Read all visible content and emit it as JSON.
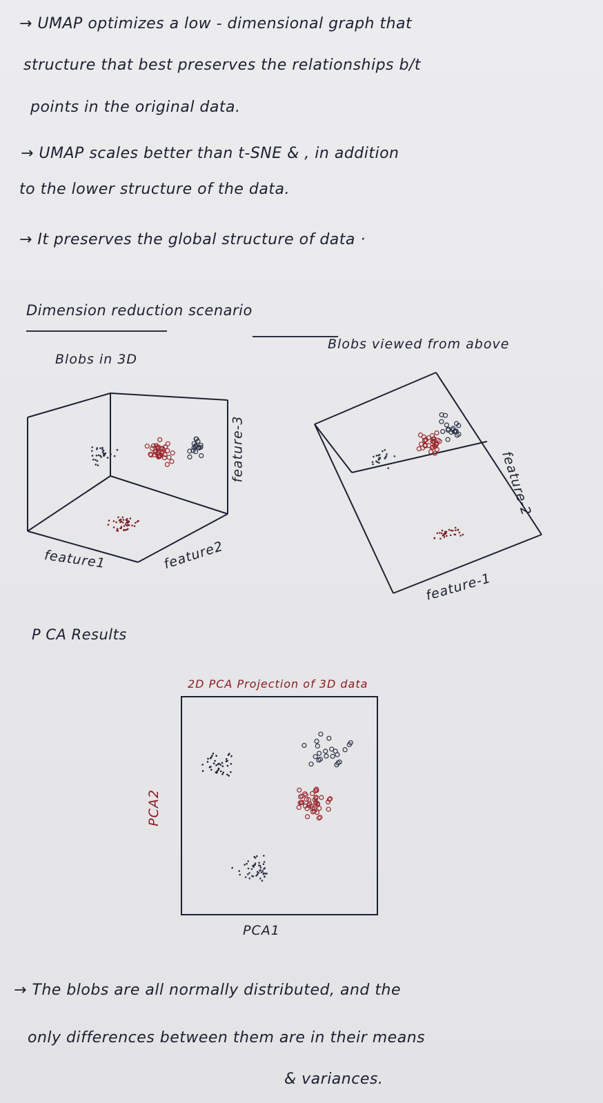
{
  "notes": {
    "line1": "→ UMAP optimizes a low - dimensional graph that",
    "line2": "structure that best preserves the relationships b/t",
    "line3": "points in the original data.",
    "line4": "→ UMAP scales better than t-SNE & , in addition",
    "line5": "to the lower structure of the data.",
    "line6": "→ It preserves the global structure of data ·"
  },
  "section1": {
    "title": "Dimension reduction scenario",
    "left_caption": "Blobs in 3D",
    "right_caption": "Blobs viewed from above",
    "left_axis_x": "feature1",
    "left_axis_y": "feature2",
    "left_axis_z": "feature-3",
    "right_axis_a": "feature-2",
    "right_axis_b": "feature-1"
  },
  "section2": {
    "title": "P CA Results",
    "plot_title": "2D PCA Projection of 3D data",
    "ylabel": "PCA2",
    "xlabel": "PCA1"
  },
  "footer": {
    "line1": "→ The blobs are all normally distributed, and the",
    "line2": "only differences between them are in their means",
    "line3": "& variances."
  },
  "colors": {
    "ink": "#1b2030",
    "red_ink": "#8a1a22",
    "paper": "#e8e8ea"
  }
}
